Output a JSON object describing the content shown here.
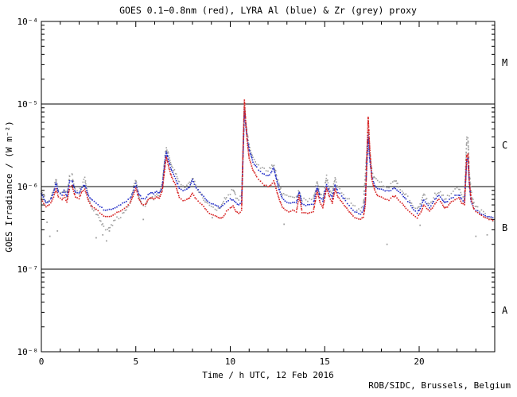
{
  "page": {
    "background": "#ffffff"
  },
  "footer": {
    "credit": "ROB/SIDC, Brussels, Belgium"
  },
  "chart_data": {
    "type": "scatter",
    "title": "GOES 0.1−0.8nm (red), LYRA Al (blue) & Zr (grey) proxy",
    "xlabel": "Time / h UTC, 12 Feb 2016",
    "ylabel": "GOES Irradiance / (W m⁻²)",
    "date": "12 Feb 2016",
    "xlim": [
      0,
      24
    ],
    "ylim": [
      1e-08,
      0.0001
    ],
    "grid": false,
    "legend_position": "in-title",
    "x_tick_labels": [
      "0",
      "5",
      "10",
      "15",
      "20"
    ],
    "x_tick_values": [
      0,
      5,
      10,
      15,
      20
    ],
    "x_minor_tick_step_h": 1,
    "y_tick_labels": [
      "10⁻⁴",
      "10⁻⁵",
      "10⁻⁶",
      "10⁻⁷",
      "10⁻⁸"
    ],
    "y_tick_exponents": [
      -4,
      -5,
      -6,
      -7,
      -8
    ],
    "flare_classes": [
      "M",
      "C",
      "B",
      "A"
    ],
    "class_boundary_lines": [
      1e-05,
      1e-06,
      1e-07
    ],
    "y_unit": "W m⁻²",
    "y_scale": 1e-07,
    "x_hours": [
      0,
      0.25,
      0.5,
      0.65,
      0.78,
      0.9,
      1.1,
      1.2,
      1.35,
      1.5,
      1.62,
      1.8,
      2,
      2.15,
      2.3,
      2.5,
      2.7,
      2.9,
      3.1,
      3.3,
      3.5,
      3.7,
      3.9,
      4.1,
      4.3,
      4.5,
      4.7,
      4.85,
      5,
      5.15,
      5.3,
      5.5,
      5.65,
      5.8,
      5.95,
      6.1,
      6.25,
      6.4,
      6.55,
      6.62,
      6.75,
      6.9,
      7.1,
      7.3,
      7.5,
      7.7,
      7.85,
      8,
      8.2,
      8.4,
      8.6,
      8.8,
      9,
      9.2,
      9.45,
      9.6,
      9.8,
      10,
      10.15,
      10.3,
      10.45,
      10.6,
      10.68,
      10.75,
      10.82,
      10.9,
      11,
      11.2,
      11.4,
      11.6,
      11.8,
      12,
      12.15,
      12.3,
      12.45,
      12.6,
      12.75,
      12.9,
      13.1,
      13.3,
      13.5,
      13.65,
      13.8,
      14,
      14.2,
      14.4,
      14.6,
      14.75,
      14.9,
      15.1,
      15.25,
      15.4,
      15.55,
      15.7,
      15.9,
      16.1,
      16.3,
      16.5,
      16.7,
      16.9,
      17.05,
      17.15,
      17.3,
      17.38,
      17.5,
      17.65,
      17.8,
      18,
      18.2,
      18.4,
      18.6,
      18.75,
      18.9,
      19.1,
      19.3,
      19.5,
      19.7,
      19.9,
      20.1,
      20.25,
      20.4,
      20.55,
      20.7,
      20.9,
      21.05,
      21.2,
      21.35,
      21.5,
      21.7,
      21.9,
      22.1,
      22.25,
      22.4,
      22.52,
      22.58,
      22.65,
      22.75,
      22.9,
      23.1,
      23.3,
      23.5,
      23.7,
      23.9
    ],
    "series": [
      {
        "name": "GOES 0.1−0.8nm (red)",
        "color": "#d62020",
        "values_1e-7": [
          7,
          5.7,
          6.3,
          7.5,
          9.4,
          7.5,
          7,
          7.7,
          6.5,
          9.8,
          10.3,
          7.5,
          7.2,
          8.7,
          9.3,
          6.7,
          5.7,
          5.3,
          4.8,
          4.4,
          4.3,
          4.4,
          4.7,
          5,
          5.2,
          5.6,
          6.3,
          7.7,
          9.6,
          7.3,
          6.2,
          6,
          6.9,
          7.4,
          7,
          7.6,
          7.2,
          8.9,
          18,
          23,
          17,
          13,
          10.5,
          7.5,
          6.8,
          7,
          7.3,
          8.3,
          7,
          6.3,
          5.7,
          4.9,
          4.6,
          4.4,
          4.1,
          4.2,
          5,
          5.5,
          5.8,
          5,
          4.7,
          5.2,
          30,
          110,
          60,
          35,
          22,
          16,
          13,
          11.5,
          10.5,
          10,
          10.5,
          11.8,
          9,
          7,
          5.7,
          5.2,
          5,
          5.2,
          5,
          7.7,
          4.9,
          4.8,
          4.8,
          5,
          8.9,
          6.5,
          5.6,
          9.6,
          7.5,
          6.3,
          9.3,
          7.5,
          6.6,
          5.7,
          5,
          4.4,
          4.1,
          4,
          4.3,
          6,
          70,
          30,
          12,
          9,
          7.7,
          7.4,
          7,
          6.9,
          7.5,
          7.7,
          6.9,
          6.3,
          5.5,
          5,
          4.5,
          4.2,
          5,
          6,
          5.5,
          5,
          5.5,
          6.5,
          7,
          6.3,
          5.5,
          5.7,
          6.5,
          6.9,
          7.3,
          6.3,
          6,
          24,
          25,
          12,
          7,
          5.3,
          4.8,
          4.5,
          4.2,
          4,
          3.9
        ]
      },
      {
        "name": "LYRA Al proxy (blue)",
        "color": "#2530c8",
        "values_1e-7": [
          8.3,
          6.3,
          7,
          8.5,
          11,
          8.5,
          8,
          9,
          7.6,
          11.5,
          11.8,
          8.6,
          8.3,
          9.8,
          10.5,
          7.8,
          6.8,
          6.4,
          5.8,
          5.3,
          5.2,
          5.4,
          5.6,
          5.9,
          6.2,
          6.6,
          7.2,
          8.6,
          10.8,
          8.3,
          7.3,
          7.2,
          7.9,
          8.5,
          8.2,
          8.8,
          8.4,
          10,
          21,
          26.5,
          20,
          15.5,
          12.5,
          9.5,
          9,
          9.3,
          10,
          12,
          9.6,
          8.5,
          7.5,
          6.6,
          6.2,
          5.9,
          5.6,
          5.8,
          6.5,
          7,
          7,
          6.4,
          6.1,
          6.5,
          25,
          85,
          55,
          38,
          28,
          20,
          17,
          15,
          14,
          13.5,
          14.5,
          17,
          12,
          9,
          7.3,
          6.6,
          6.3,
          6.5,
          6.3,
          8.6,
          6.1,
          6,
          6,
          6.2,
          10,
          7.5,
          6.7,
          10.5,
          8.5,
          7.3,
          10.5,
          8.6,
          7.7,
          6.7,
          5.9,
          5.2,
          4.8,
          4.7,
          5,
          7,
          42,
          22,
          13,
          10.5,
          9.5,
          9.2,
          8.9,
          8.8,
          9.4,
          9.6,
          8.7,
          8,
          7,
          6.3,
          5.3,
          4.8,
          5.8,
          7,
          6.3,
          5.6,
          6.2,
          7.3,
          7.8,
          7.2,
          6.3,
          6.6,
          7.3,
          7.7,
          8,
          7,
          6.6,
          21,
          22,
          11,
          6.5,
          5.5,
          5,
          4.7,
          4.4,
          4.3,
          4.2
        ]
      },
      {
        "name": "LYRA Zr proxy (grey)",
        "color": "#a0a0a0",
        "values_1e-7": [
          9,
          6.6,
          7.4,
          9.2,
          12.2,
          8.8,
          8.3,
          9.3,
          7.8,
          13.5,
          14,
          8.8,
          8.5,
          10.5,
          12.5,
          7,
          5.5,
          4.8,
          4,
          3.2,
          2.9,
          3.4,
          3.9,
          4.3,
          4.6,
          5.4,
          6.3,
          9,
          12,
          7.8,
          6,
          5.6,
          6.6,
          7.4,
          7.2,
          8,
          7.8,
          10.5,
          24,
          30,
          23,
          18,
          14.5,
          11,
          10,
          10.3,
          11,
          13,
          10,
          8.5,
          7,
          6,
          5.5,
          5.2,
          5.5,
          6.3,
          7.7,
          8.5,
          9.5,
          7.5,
          7,
          7.5,
          28,
          97,
          60,
          42,
          32,
          23,
          19.5,
          17.5,
          16,
          15.5,
          16.5,
          19,
          13.5,
          10,
          8.3,
          7.6,
          7.3,
          7.6,
          7.2,
          9,
          7,
          6.9,
          6.9,
          7.1,
          11.5,
          8,
          7.2,
          13,
          9.5,
          8.3,
          12.5,
          9.6,
          8.6,
          7.6,
          6.8,
          6,
          5.4,
          5.2,
          6,
          14,
          48,
          26,
          15,
          12.5,
          11.5,
          11,
          10,
          9.8,
          11,
          12,
          10,
          9,
          7.8,
          7,
          5.8,
          5.2,
          6.4,
          8,
          7,
          6.2,
          7,
          8.3,
          8.9,
          8,
          7.2,
          7.5,
          8.5,
          9,
          9.5,
          8,
          7.5,
          38,
          39,
          16,
          8.5,
          6.3,
          5.5,
          5,
          4.5,
          4.1,
          3.8
        ]
      }
    ],
    "grey_outlier_points": {
      "x_hours": [
        0.3,
        0.45,
        0.85,
        2.9,
        3.25,
        3.45,
        3.6,
        5.4,
        9.05,
        12.85,
        18.3,
        20.05,
        23,
        23.6
      ],
      "values_1e-7": [
        3.7,
        2.5,
        2.9,
        2.4,
        2.6,
        2.2,
        2.9,
        4,
        4.2,
        3.5,
        2,
        3.4,
        2.5,
        2.6
      ]
    }
  }
}
